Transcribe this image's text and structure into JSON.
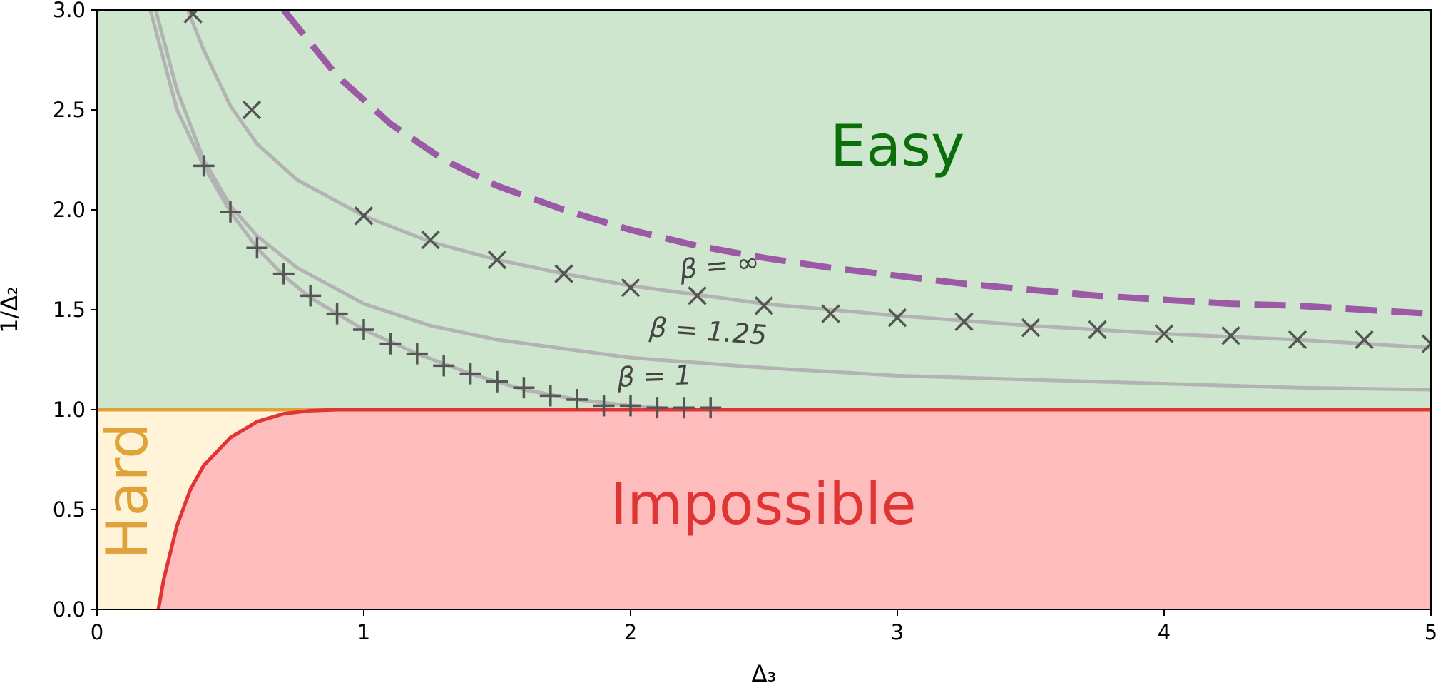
{
  "chart_data": {
    "type": "line",
    "xlabel": "Δ₃",
    "ylabel": "1/Δ₂",
    "xlim": [
      0,
      5
    ],
    "ylim": [
      0,
      3
    ],
    "xticks": [
      "0",
      "1",
      "2",
      "3",
      "4",
      "5"
    ],
    "yticks": [
      "0.0",
      "0.5",
      "1.0",
      "1.5",
      "2.0",
      "2.5",
      "3.0"
    ],
    "grid": false,
    "regions": {
      "easy": {
        "label": "Easy",
        "color": "#cde6cd",
        "text_color": "#0b6e0b"
      },
      "hard": {
        "label": "Hard",
        "color": "#fff3d8",
        "text_color": "#e0a23a"
      },
      "impossible": {
        "label": "Impossible",
        "color": "#ffbcbc",
        "text_color": "#e03535"
      }
    },
    "curve_labels": [
      "β = ∞",
      "β = 1.25",
      "β = 1"
    ],
    "series": [
      {
        "style": "dashed",
        "color": "#9b59a6",
        "x": [
          0.7,
          0.9,
          1.1,
          1.3,
          1.5,
          1.75,
          2.0,
          2.25,
          2.5,
          2.75,
          3.0,
          3.25,
          3.5,
          3.75,
          4.0,
          4.25,
          4.5,
          4.75,
          5.0
        ],
        "y": [
          3.0,
          2.67,
          2.43,
          2.25,
          2.12,
          2.0,
          1.9,
          1.82,
          1.76,
          1.71,
          1.67,
          1.63,
          1.6,
          1.57,
          1.55,
          1.53,
          1.52,
          1.5,
          1.48
        ]
      },
      {
        "style": "solid",
        "color": "#b3b3b3",
        "x": [
          0.34,
          0.4,
          0.5,
          0.6,
          0.75,
          1.0,
          1.25,
          1.5,
          1.75,
          2.0,
          2.5,
          3.0,
          3.5,
          4.0,
          4.5,
          5.0
        ],
        "y": [
          3.0,
          2.8,
          2.52,
          2.33,
          2.15,
          1.97,
          1.84,
          1.75,
          1.68,
          1.62,
          1.53,
          1.47,
          1.42,
          1.38,
          1.35,
          1.31
        ]
      },
      {
        "style": "solid",
        "color": "#b3b3b3",
        "x": [
          0.22,
          0.3,
          0.4,
          0.5,
          0.6,
          0.75,
          1.0,
          1.25,
          1.5,
          2.0,
          2.5,
          3.0,
          3.5,
          4.0,
          4.5,
          5.0
        ],
        "y": [
          3.0,
          2.6,
          2.25,
          2.02,
          1.87,
          1.71,
          1.53,
          1.42,
          1.35,
          1.26,
          1.21,
          1.17,
          1.15,
          1.13,
          1.11,
          1.1
        ]
      },
      {
        "style": "solid",
        "color": "#b3b3b3",
        "x": [
          0.2,
          0.3,
          0.4,
          0.5,
          0.6,
          0.7,
          0.8,
          1.0,
          1.2,
          1.4,
          1.6,
          1.8,
          2.0,
          2.2,
          2.3
        ],
        "y": [
          3.0,
          2.5,
          2.22,
          1.99,
          1.81,
          1.67,
          1.56,
          1.4,
          1.28,
          1.18,
          1.1,
          1.05,
          1.02,
          1.0,
          1.0
        ]
      },
      {
        "style": "solid",
        "color": "#e03535",
        "x": [
          0.23,
          0.25,
          0.3,
          0.35,
          0.4,
          0.5,
          0.6,
          0.7,
          0.8,
          0.9,
          1.0,
          5.0
        ],
        "y": [
          0.0,
          0.15,
          0.42,
          0.6,
          0.72,
          0.86,
          0.94,
          0.98,
          0.995,
          1.0,
          1.0,
          1.0
        ]
      }
    ],
    "markers": [
      {
        "marker": "x",
        "color": "#555555",
        "x": [
          0.36,
          0.58,
          1.0,
          1.25,
          1.5,
          1.75,
          2.0,
          2.25,
          2.5,
          2.75,
          3.0,
          3.25,
          3.5,
          3.75,
          4.0,
          4.25,
          4.5,
          4.75,
          5.0
        ],
        "y": [
          2.98,
          2.5,
          1.97,
          1.85,
          1.75,
          1.68,
          1.61,
          1.57,
          1.52,
          1.48,
          1.46,
          1.44,
          1.41,
          1.4,
          1.38,
          1.37,
          1.35,
          1.35,
          1.33
        ]
      },
      {
        "marker": "+",
        "color": "#555555",
        "x": [
          0.4,
          0.5,
          0.6,
          0.7,
          0.8,
          0.9,
          1.0,
          1.1,
          1.2,
          1.3,
          1.4,
          1.5,
          1.6,
          1.7,
          1.8,
          1.9,
          2.0,
          2.1,
          2.2,
          2.3
        ],
        "y": [
          2.22,
          1.99,
          1.81,
          1.68,
          1.57,
          1.48,
          1.4,
          1.33,
          1.28,
          1.22,
          1.18,
          1.14,
          1.11,
          1.07,
          1.05,
          1.02,
          1.02,
          1.01,
          1.01,
          1.01
        ]
      }
    ]
  }
}
